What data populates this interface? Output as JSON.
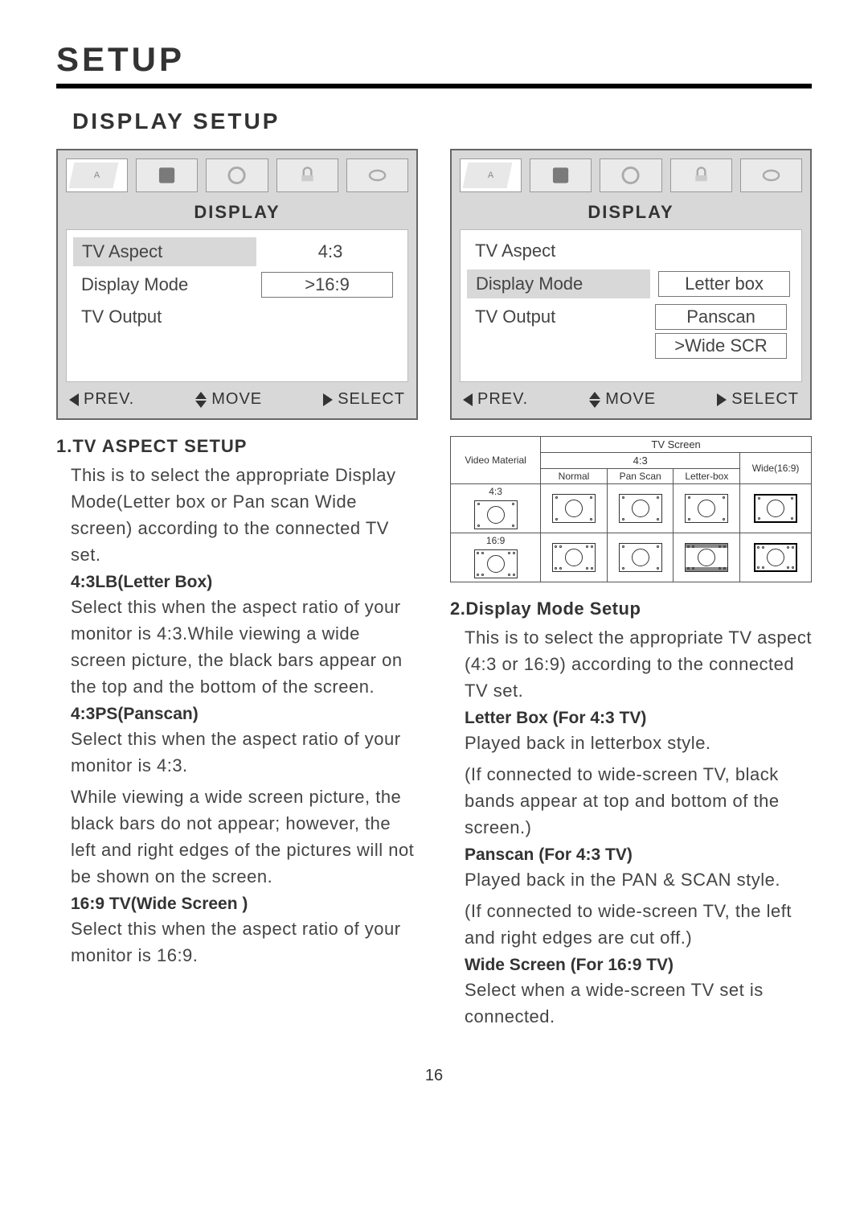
{
  "page_title": "SETUP",
  "section_title": "DISPLAY SETUP",
  "page_number": "16",
  "osd_left": {
    "header": "DISPLAY",
    "rows": [
      {
        "label": "TV Aspect",
        "value": "4:3",
        "label_boxed": true,
        "value_boxed": false
      },
      {
        "label": "Display Mode",
        "value": ">16:9",
        "label_boxed": false,
        "value_boxed": true
      },
      {
        "label": "TV Output",
        "value": "",
        "label_boxed": false,
        "value_boxed": false
      }
    ],
    "nav": {
      "prev": "PREV.",
      "move": "MOVE",
      "select": "SELECT"
    }
  },
  "osd_right": {
    "header": "DISPLAY",
    "rows": [
      {
        "label": "TV Aspect",
        "value": "",
        "label_boxed": false,
        "value_boxed": false
      },
      {
        "label": "Display Mode",
        "value": "Letter box",
        "label_boxed": true,
        "value_boxed": true
      },
      {
        "label": "TV Output",
        "value": "Panscan",
        "label_boxed": false,
        "value_boxed": true
      },
      {
        "label": "",
        "value": ">Wide SCR",
        "label_boxed": false,
        "value_boxed": true
      }
    ],
    "nav": {
      "prev": "PREV.",
      "move": "MOVE",
      "select": "SELECT"
    }
  },
  "cmp_table": {
    "top_header": "TV Screen",
    "row_header": "Video Material",
    "group43": "4:3",
    "wide": "Wide(16:9)",
    "cols43": [
      "Normal",
      "Pan Scan",
      "Letter-box"
    ],
    "row_labels": [
      "4:3",
      "16:9"
    ]
  },
  "left_content": {
    "h1": "1.TV ASPECT SETUP",
    "p1": "This is to select the appropriate Display Mode(Letter box or Pan scan Wide screen) according to the connected TV set.",
    "s1": "4:3LB(Letter Box)",
    "p2": "Select this when the aspect ratio of your monitor is 4:3.While viewing a wide screen  picture, the black bars appear on the top and the bottom of the screen.",
    "s2": "4:3PS(Panscan)",
    "p3": "Select this when the aspect ratio of your monitor is 4:3.",
    "p4": "While viewing a wide screen  picture, the black bars do not appear; however, the left and right edges of the pictures will not be shown on the screen.",
    "s3": "16:9 TV(Wide Screen )",
    "p5": "Select this when the aspect ratio of your  monitor is 16:9."
  },
  "right_content": {
    "h2": "2.Display Mode Setup",
    "p1": "This is to select the appropriate TV aspect (4:3 or 16:9) according to the connected TV set.",
    "s1": "Letter Box (For 4:3 TV)",
    "p2": "Played back in letterbox style.",
    "p3": "(If connected to wide-screen TV, black bands appear at top and bottom of the screen.)",
    "s2": "Panscan (For 4:3 TV)",
    "p4": "Played back in the PAN & SCAN style.",
    "p5": "(If connected to wide-screen TV, the left and right edges are cut off.)",
    "s3": "Wide Screen (For 16:9 TV)",
    "p6": "Select when a wide-screen TV set is connected."
  },
  "colors": {
    "bg_page": "#ffffff",
    "bg_osd": "#d8d8d8",
    "border": "#666666",
    "text": "#333333"
  }
}
